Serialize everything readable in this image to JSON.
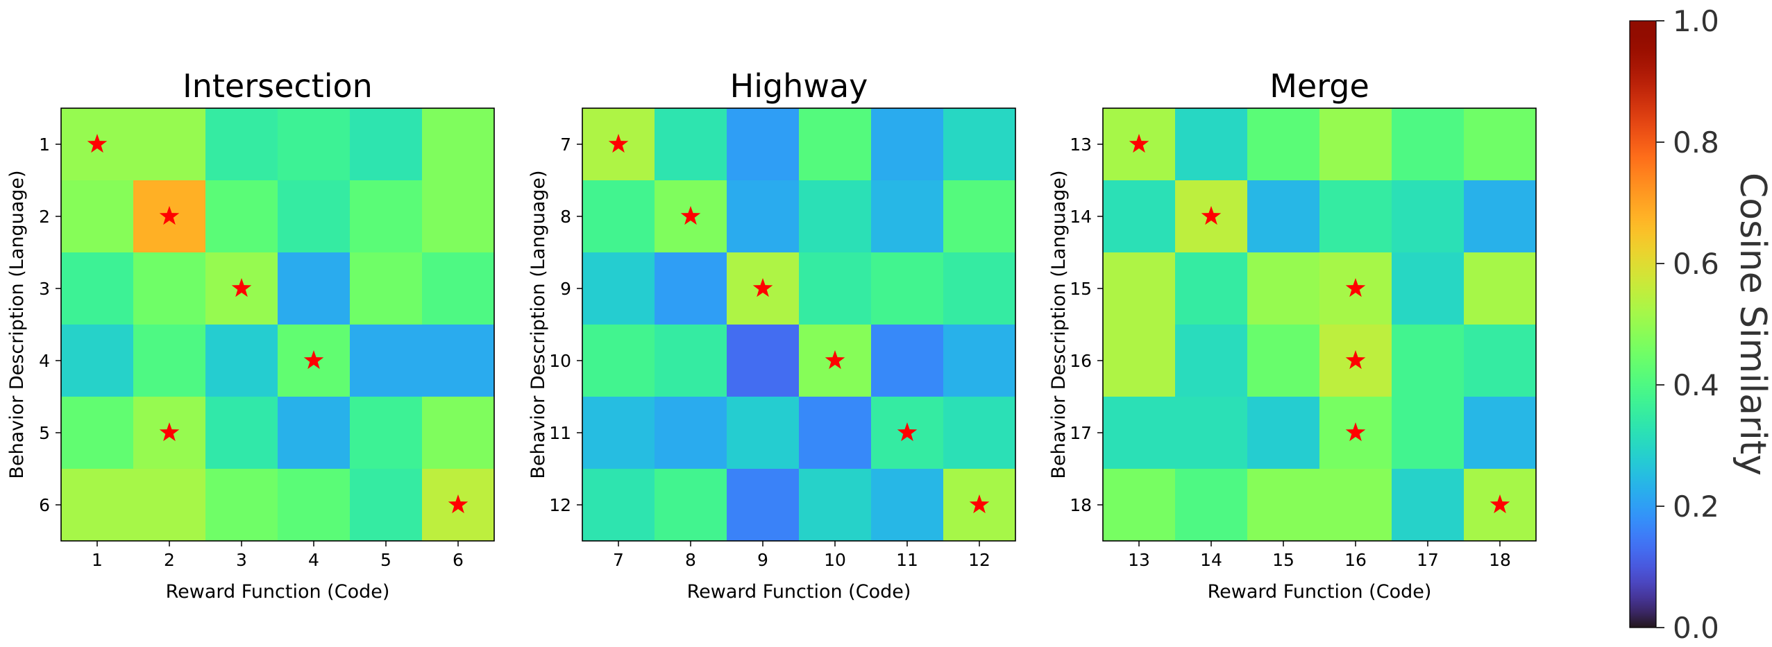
{
  "chart_data": [
    {
      "type": "heatmap",
      "title": "Intersection",
      "xlabel": "Reward Function (Code)",
      "ylabel": "Behavior Description (Language)",
      "x_ticks": [
        "1",
        "2",
        "3",
        "4",
        "5",
        "6"
      ],
      "y_ticks": [
        "1",
        "2",
        "3",
        "4",
        "5",
        "6"
      ],
      "values": [
        [
          0.5,
          0.5,
          0.35,
          0.37,
          0.33,
          0.47
        ],
        [
          0.48,
          0.68,
          0.42,
          0.35,
          0.42,
          0.47
        ],
        [
          0.37,
          0.45,
          0.5,
          0.22,
          0.45,
          0.4
        ],
        [
          0.29,
          0.4,
          0.28,
          0.43,
          0.22,
          0.22
        ],
        [
          0.43,
          0.5,
          0.34,
          0.23,
          0.37,
          0.47
        ],
        [
          0.52,
          0.52,
          0.45,
          0.42,
          0.35,
          0.55
        ]
      ],
      "stars": [
        [
          0,
          0
        ],
        [
          1,
          1
        ],
        [
          2,
          2
        ],
        [
          3,
          3
        ],
        [
          4,
          1
        ],
        [
          5,
          5
        ]
      ],
      "vmin": 0.0,
      "vmax": 1.0,
      "colormap": "turbo"
    },
    {
      "type": "heatmap",
      "title": "Highway",
      "xlabel": "Reward Function (Code)",
      "ylabel": "Behavior Description (Language)",
      "x_ticks": [
        "7",
        "8",
        "9",
        "10",
        "11",
        "12"
      ],
      "y_ticks": [
        "7",
        "8",
        "9",
        "10",
        "11",
        "12"
      ],
      "values": [
        [
          0.53,
          0.33,
          0.2,
          0.41,
          0.22,
          0.3
        ],
        [
          0.38,
          0.47,
          0.22,
          0.32,
          0.24,
          0.41
        ],
        [
          0.28,
          0.2,
          0.53,
          0.35,
          0.38,
          0.35
        ],
        [
          0.38,
          0.35,
          0.13,
          0.48,
          0.17,
          0.23
        ],
        [
          0.25,
          0.22,
          0.28,
          0.17,
          0.35,
          0.32
        ],
        [
          0.33,
          0.38,
          0.16,
          0.29,
          0.24,
          0.52
        ]
      ],
      "stars": [
        [
          0,
          0
        ],
        [
          1,
          1
        ],
        [
          2,
          2
        ],
        [
          3,
          3
        ],
        [
          4,
          4
        ],
        [
          5,
          5
        ]
      ],
      "vmin": 0.0,
      "vmax": 1.0,
      "colormap": "turbo"
    },
    {
      "type": "heatmap",
      "title": "Merge",
      "xlabel": "Reward Function (Code)",
      "ylabel": "Behavior Description (Language)",
      "x_ticks": [
        "13",
        "14",
        "15",
        "16",
        "17",
        "18"
      ],
      "y_ticks": [
        "13",
        "14",
        "15",
        "16",
        "17",
        "18"
      ],
      "values": [
        [
          0.52,
          0.3,
          0.42,
          0.5,
          0.4,
          0.45
        ],
        [
          0.32,
          0.55,
          0.24,
          0.35,
          0.32,
          0.23
        ],
        [
          0.53,
          0.35,
          0.5,
          0.52,
          0.3,
          0.52
        ],
        [
          0.53,
          0.31,
          0.44,
          0.55,
          0.38,
          0.35
        ],
        [
          0.32,
          0.32,
          0.28,
          0.46,
          0.38,
          0.24
        ],
        [
          0.46,
          0.4,
          0.48,
          0.48,
          0.29,
          0.52
        ]
      ],
      "stars": [
        [
          0,
          0
        ],
        [
          1,
          1
        ],
        [
          2,
          3
        ],
        [
          3,
          3
        ],
        [
          4,
          3
        ],
        [
          5,
          5
        ]
      ],
      "vmin": 0.0,
      "vmax": 1.0,
      "colormap": "turbo"
    }
  ],
  "colorbar": {
    "label": "Cosine Similarity",
    "ticks": [
      "0.0",
      "0.2",
      "0.4",
      "0.6",
      "0.8",
      "1.0"
    ],
    "tick_values": [
      0.0,
      0.2,
      0.4,
      0.6,
      0.8,
      1.0
    ],
    "vmin": 0.0,
    "vmax": 1.0
  },
  "colors": {
    "star": "#ff0000"
  }
}
